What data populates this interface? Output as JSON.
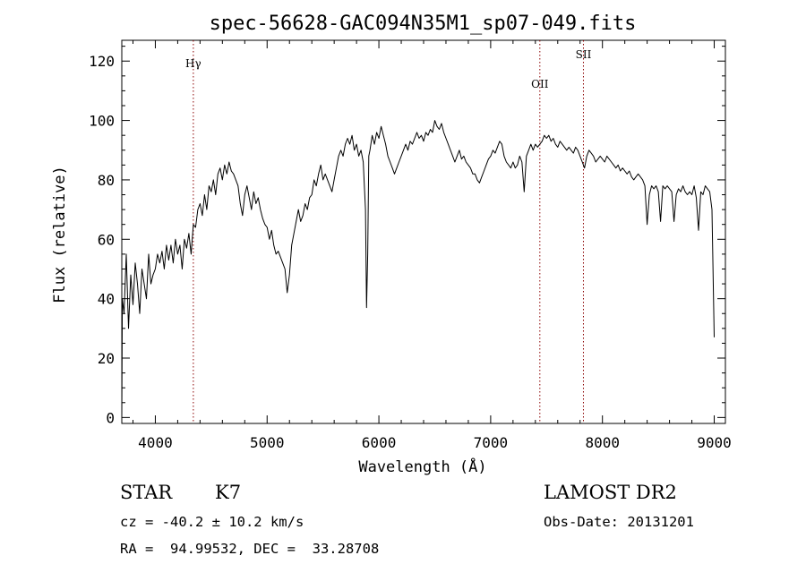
{
  "chart_data": {
    "type": "line",
    "title": "spec-56628-GAC094N35M1_sp07-049.fits",
    "xlabel": "Wavelength (Å)",
    "ylabel": "Flux (relative)",
    "xlim": [
      3700,
      9100
    ],
    "ylim": [
      -2,
      127
    ],
    "x_ticks": [
      4000,
      5000,
      6000,
      7000,
      8000,
      9000
    ],
    "y_ticks": [
      0,
      20,
      40,
      60,
      80,
      100,
      120
    ],
    "x_tick_labels": [
      "4000",
      "5000",
      "6000",
      "7000",
      "8000",
      "9000"
    ],
    "y_tick_labels": [
      "0",
      "20",
      "40",
      "60",
      "80",
      "100",
      "120"
    ],
    "grid": false,
    "series": [
      {
        "color": "#000000",
        "points": [
          [
            3700,
            0
          ],
          [
            3705,
            40
          ],
          [
            3720,
            35
          ],
          [
            3740,
            55
          ],
          [
            3760,
            30
          ],
          [
            3780,
            48
          ],
          [
            3800,
            38
          ],
          [
            3820,
            52
          ],
          [
            3840,
            45
          ],
          [
            3860,
            35
          ],
          [
            3880,
            50
          ],
          [
            3900,
            45
          ],
          [
            3920,
            40
          ],
          [
            3940,
            55
          ],
          [
            3960,
            45
          ],
          [
            3980,
            48
          ],
          [
            4000,
            50
          ],
          [
            4020,
            55
          ],
          [
            4040,
            52
          ],
          [
            4060,
            56
          ],
          [
            4080,
            50
          ],
          [
            4100,
            58
          ],
          [
            4120,
            53
          ],
          [
            4140,
            58
          ],
          [
            4160,
            52
          ],
          [
            4180,
            60
          ],
          [
            4200,
            55
          ],
          [
            4220,
            58
          ],
          [
            4240,
            50
          ],
          [
            4260,
            60
          ],
          [
            4280,
            57
          ],
          [
            4300,
            62
          ],
          [
            4320,
            55
          ],
          [
            4340,
            65
          ],
          [
            4360,
            64
          ],
          [
            4380,
            70
          ],
          [
            4400,
            72
          ],
          [
            4420,
            68
          ],
          [
            4440,
            75
          ],
          [
            4460,
            70
          ],
          [
            4480,
            78
          ],
          [
            4500,
            76
          ],
          [
            4520,
            80
          ],
          [
            4540,
            75
          ],
          [
            4560,
            82
          ],
          [
            4580,
            84
          ],
          [
            4600,
            80
          ],
          [
            4620,
            85
          ],
          [
            4640,
            82
          ],
          [
            4660,
            86
          ],
          [
            4680,
            83
          ],
          [
            4700,
            82
          ],
          [
            4720,
            80
          ],
          [
            4740,
            78
          ],
          [
            4760,
            72
          ],
          [
            4780,
            68
          ],
          [
            4800,
            75
          ],
          [
            4820,
            78
          ],
          [
            4840,
            74
          ],
          [
            4860,
            70
          ],
          [
            4880,
            76
          ],
          [
            4900,
            72
          ],
          [
            4920,
            74
          ],
          [
            4940,
            70
          ],
          [
            4960,
            67
          ],
          [
            4980,
            65
          ],
          [
            5000,
            64
          ],
          [
            5020,
            60
          ],
          [
            5040,
            63
          ],
          [
            5060,
            58
          ],
          [
            5080,
            55
          ],
          [
            5100,
            56
          ],
          [
            5120,
            54
          ],
          [
            5140,
            52
          ],
          [
            5160,
            50
          ],
          [
            5180,
            42
          ],
          [
            5200,
            48
          ],
          [
            5220,
            58
          ],
          [
            5240,
            62
          ],
          [
            5260,
            66
          ],
          [
            5280,
            70
          ],
          [
            5300,
            66
          ],
          [
            5320,
            68
          ],
          [
            5340,
            72
          ],
          [
            5360,
            70
          ],
          [
            5380,
            74
          ],
          [
            5400,
            75
          ],
          [
            5420,
            80
          ],
          [
            5440,
            78
          ],
          [
            5460,
            82
          ],
          [
            5480,
            85
          ],
          [
            5500,
            80
          ],
          [
            5520,
            82
          ],
          [
            5540,
            80
          ],
          [
            5560,
            78
          ],
          [
            5580,
            76
          ],
          [
            5600,
            80
          ],
          [
            5620,
            84
          ],
          [
            5640,
            88
          ],
          [
            5660,
            90
          ],
          [
            5680,
            88
          ],
          [
            5700,
            92
          ],
          [
            5720,
            94
          ],
          [
            5740,
            92
          ],
          [
            5760,
            95
          ],
          [
            5780,
            90
          ],
          [
            5800,
            92
          ],
          [
            5820,
            88
          ],
          [
            5840,
            90
          ],
          [
            5860,
            86
          ],
          [
            5880,
            70
          ],
          [
            5890,
            37
          ],
          [
            5900,
            55
          ],
          [
            5910,
            88
          ],
          [
            5920,
            90
          ],
          [
            5940,
            95
          ],
          [
            5960,
            92
          ],
          [
            5980,
            96
          ],
          [
            6000,
            94
          ],
          [
            6020,
            98
          ],
          [
            6040,
            95
          ],
          [
            6060,
            92
          ],
          [
            6080,
            88
          ],
          [
            6100,
            86
          ],
          [
            6120,
            84
          ],
          [
            6140,
            82
          ],
          [
            6160,
            84
          ],
          [
            6180,
            86
          ],
          [
            6200,
            88
          ],
          [
            6220,
            90
          ],
          [
            6240,
            92
          ],
          [
            6260,
            90
          ],
          [
            6280,
            93
          ],
          [
            6300,
            92
          ],
          [
            6320,
            94
          ],
          [
            6340,
            96
          ],
          [
            6360,
            94
          ],
          [
            6380,
            95
          ],
          [
            6400,
            93
          ],
          [
            6420,
            96
          ],
          [
            6440,
            95
          ],
          [
            6460,
            97
          ],
          [
            6480,
            96
          ],
          [
            6500,
            100
          ],
          [
            6520,
            98
          ],
          [
            6540,
            97
          ],
          [
            6560,
            99
          ],
          [
            6580,
            96
          ],
          [
            6600,
            94
          ],
          [
            6620,
            92
          ],
          [
            6640,
            90
          ],
          [
            6660,
            88
          ],
          [
            6680,
            86
          ],
          [
            6700,
            88
          ],
          [
            6720,
            90
          ],
          [
            6740,
            87
          ],
          [
            6760,
            88
          ],
          [
            6780,
            86
          ],
          [
            6800,
            85
          ],
          [
            6820,
            84
          ],
          [
            6840,
            82
          ],
          [
            6860,
            82
          ],
          [
            6880,
            80
          ],
          [
            6900,
            79
          ],
          [
            6920,
            81
          ],
          [
            6940,
            83
          ],
          [
            6960,
            85
          ],
          [
            6980,
            87
          ],
          [
            7000,
            88
          ],
          [
            7020,
            90
          ],
          [
            7040,
            89
          ],
          [
            7060,
            91
          ],
          [
            7080,
            93
          ],
          [
            7100,
            92
          ],
          [
            7120,
            88
          ],
          [
            7140,
            86
          ],
          [
            7160,
            85
          ],
          [
            7180,
            84
          ],
          [
            7200,
            86
          ],
          [
            7220,
            84
          ],
          [
            7240,
            85
          ],
          [
            7260,
            88
          ],
          [
            7280,
            86
          ],
          [
            7300,
            76
          ],
          [
            7320,
            88
          ],
          [
            7340,
            90
          ],
          [
            7360,
            92
          ],
          [
            7380,
            90
          ],
          [
            7400,
            92
          ],
          [
            7420,
            91
          ],
          [
            7440,
            92
          ],
          [
            7460,
            93
          ],
          [
            7480,
            95
          ],
          [
            7500,
            94
          ],
          [
            7520,
            95
          ],
          [
            7540,
            93
          ],
          [
            7560,
            94
          ],
          [
            7580,
            92
          ],
          [
            7600,
            91
          ],
          [
            7620,
            93
          ],
          [
            7640,
            92
          ],
          [
            7660,
            91
          ],
          [
            7680,
            90
          ],
          [
            7700,
            91
          ],
          [
            7720,
            90
          ],
          [
            7740,
            89
          ],
          [
            7760,
            91
          ],
          [
            7780,
            90
          ],
          [
            7800,
            88
          ],
          [
            7820,
            86
          ],
          [
            7840,
            84
          ],
          [
            7860,
            88
          ],
          [
            7880,
            90
          ],
          [
            7900,
            89
          ],
          [
            7920,
            88
          ],
          [
            7940,
            86
          ],
          [
            7960,
            87
          ],
          [
            7980,
            88
          ],
          [
            8000,
            87
          ],
          [
            8020,
            86
          ],
          [
            8040,
            88
          ],
          [
            8060,
            87
          ],
          [
            8080,
            86
          ],
          [
            8100,
            85
          ],
          [
            8120,
            84
          ],
          [
            8140,
            85
          ],
          [
            8160,
            83
          ],
          [
            8180,
            84
          ],
          [
            8200,
            83
          ],
          [
            8220,
            82
          ],
          [
            8240,
            83
          ],
          [
            8260,
            81
          ],
          [
            8280,
            80
          ],
          [
            8300,
            81
          ],
          [
            8320,
            82
          ],
          [
            8340,
            81
          ],
          [
            8360,
            80
          ],
          [
            8380,
            78
          ],
          [
            8400,
            65
          ],
          [
            8420,
            75
          ],
          [
            8440,
            78
          ],
          [
            8460,
            77
          ],
          [
            8480,
            78
          ],
          [
            8500,
            76
          ],
          [
            8520,
            66
          ],
          [
            8540,
            78
          ],
          [
            8560,
            77
          ],
          [
            8580,
            78
          ],
          [
            8600,
            77
          ],
          [
            8620,
            76
          ],
          [
            8640,
            66
          ],
          [
            8660,
            75
          ],
          [
            8680,
            77
          ],
          [
            8700,
            76
          ],
          [
            8720,
            78
          ],
          [
            8740,
            76
          ],
          [
            8760,
            75
          ],
          [
            8780,
            76
          ],
          [
            8800,
            75
          ],
          [
            8820,
            78
          ],
          [
            8840,
            74
          ],
          [
            8860,
            63
          ],
          [
            8880,
            76
          ],
          [
            8900,
            75
          ],
          [
            8920,
            78
          ],
          [
            8940,
            77
          ],
          [
            8960,
            76
          ],
          [
            8980,
            70
          ],
          [
            9000,
            27
          ]
        ]
      }
    ],
    "lines": [
      {
        "label": "Hγ",
        "x": 4340,
        "label_y": 118,
        "color": "#8b0000"
      },
      {
        "label": "OII",
        "x": 7440,
        "label_y": 111,
        "color": "#8b0000"
      },
      {
        "label": "SII",
        "x": 7830,
        "label_y": 121,
        "color": "#8b0000"
      }
    ]
  },
  "info": {
    "class_label": "STAR",
    "subclass_label": "K7",
    "survey_label": "LAMOST DR2",
    "cz_text": "cz = -40.2 ± 10.2 km/s",
    "obs_date_text": "Obs-Date: 20131201",
    "coords_text": "RA =  94.99532, DEC =  33.28708"
  }
}
